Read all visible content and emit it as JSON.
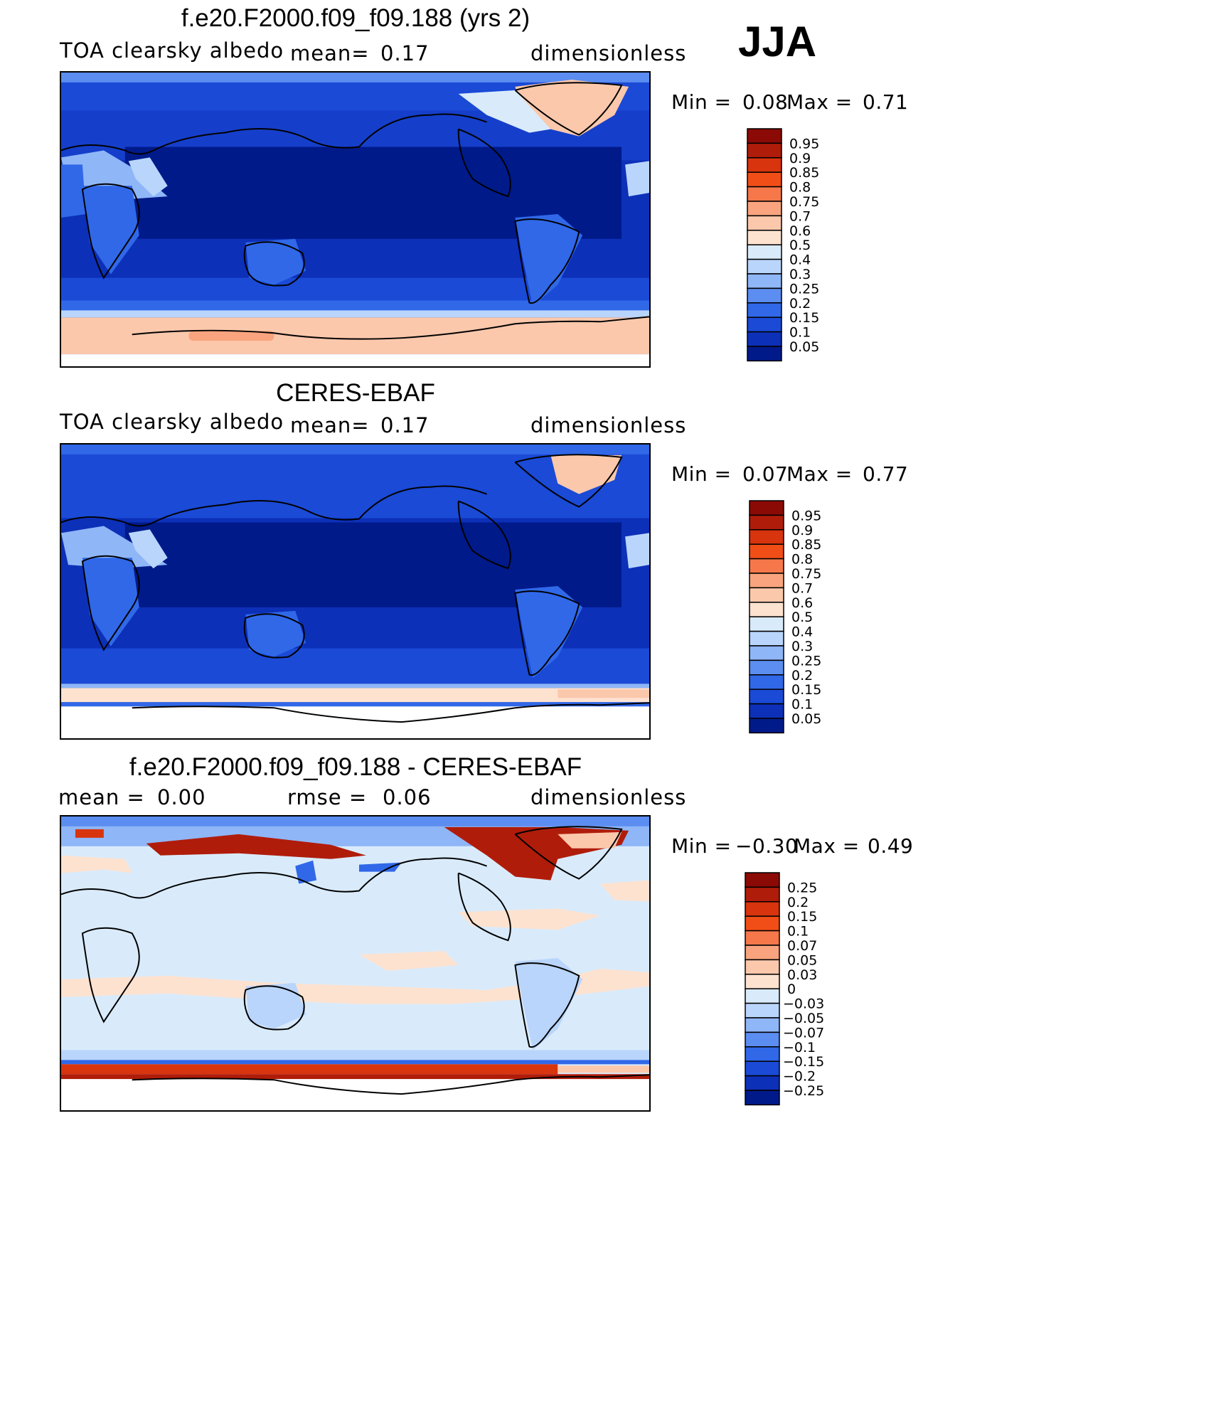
{
  "season": "JJA",
  "panels": [
    {
      "title": "f.e20.F2000.f09_f09.188 (yrs 2)",
      "left_label": "TOA clearsky albedo",
      "center_key": "mean=",
      "center_value": "0.17",
      "right_label": "dimensionless",
      "min_label": "Min =",
      "min_value": "0.08",
      "max_label": "Max =",
      "max_value": "0.71"
    },
    {
      "title": "CERES-EBAF",
      "left_label": "TOA clearsky albedo",
      "center_key": "mean=",
      "center_value": "0.17",
      "right_label": "dimensionless",
      "min_label": "Min =",
      "min_value": "0.07",
      "max_label": "Max =",
      "max_value": "0.77"
    },
    {
      "title": "f.e20.F2000.f09_f09.188 - CERES-EBAF",
      "left_key": "mean =",
      "left_value": "0.00",
      "center_key": "rmse =",
      "center_value": "0.06",
      "right_label": "dimensionless",
      "min_label": "Min =",
      "min_value": "−0.30",
      "max_label": "Max =",
      "max_value": "0.49"
    }
  ],
  "colorbars": {
    "abs": {
      "labels": [
        "0.95",
        "0.9",
        "0.85",
        "0.8",
        "0.75",
        "0.7",
        "0.6",
        "0.5",
        "0.4",
        "0.3",
        "0.25",
        "0.2",
        "0.15",
        "0.1",
        "0.05"
      ],
      "colors": [
        "#8c0a06",
        "#b01c0a",
        "#d8340e",
        "#f04e16",
        "#f6784a",
        "#f9a47e",
        "#fbc8ac",
        "#fde2d0",
        "#d9ebfb",
        "#b9d5fb",
        "#8fb6f7",
        "#5c8df0",
        "#3068e8",
        "#1a4ad6",
        "#0d30b8",
        "#001a8a"
      ]
    },
    "diff": {
      "labels": [
        "0.25",
        "0.2",
        "0.15",
        "0.1",
        "0.07",
        "0.05",
        "0.03",
        "0",
        "−0.03",
        "−0.05",
        "−0.07",
        "−0.1",
        "−0.15",
        "−0.2",
        "−0.25"
      ],
      "colors": [
        "#8c0a06",
        "#b01c0a",
        "#d8340e",
        "#f04e16",
        "#f6784a",
        "#f9a47e",
        "#fbc8ac",
        "#fde2d0",
        "#d9ebfb",
        "#b9d5fb",
        "#8fb6f7",
        "#5c8df0",
        "#3068e8",
        "#1a4ad6",
        "#0d30b8",
        "#001a8a"
      ]
    }
  },
  "chart_data": [
    {
      "type": "heatmap",
      "title": "f.e20.F2000.f09_f09.188 (yrs 2)",
      "variable": "TOA clearsky albedo",
      "units": "dimensionless",
      "season": "JJA",
      "mean": 0.17,
      "min": 0.08,
      "max": 0.71,
      "levels": [
        0.05,
        0.1,
        0.15,
        0.2,
        0.25,
        0.3,
        0.4,
        0.5,
        0.6,
        0.7,
        0.75,
        0.8,
        0.85,
        0.9,
        0.95
      ],
      "features": {
        "ocean_tropics": 0.08,
        "ocean_midlat": 0.12,
        "southern_ocean": 0.2,
        "antarctic_band": 0.6,
        "greenland": 0.6,
        "sahara_arabia": 0.3,
        "arctic_sea_ice": 0.5
      }
    },
    {
      "type": "heatmap",
      "title": "CERES-EBAF",
      "variable": "TOA clearsky albedo",
      "units": "dimensionless",
      "season": "JJA",
      "mean": 0.17,
      "min": 0.07,
      "max": 0.77,
      "levels": [
        0.05,
        0.1,
        0.15,
        0.2,
        0.25,
        0.3,
        0.4,
        0.5,
        0.6,
        0.7,
        0.75,
        0.8,
        0.85,
        0.9,
        0.95
      ],
      "features": {
        "ocean_tropics": 0.08,
        "ocean_midlat": 0.12,
        "southern_ocean": 0.17,
        "antarctic_band": 0.6,
        "antarctica": "missing",
        "greenland": 0.6,
        "sahara_arabia": 0.3
      }
    },
    {
      "type": "heatmap",
      "title": "f.e20.F2000.f09_f09.188 - CERES-EBAF",
      "units": "dimensionless",
      "season": "JJA",
      "mean": 0.0,
      "rmse": 0.06,
      "min": -0.3,
      "max": 0.49,
      "levels": [
        -0.25,
        -0.2,
        -0.15,
        -0.1,
        -0.07,
        -0.05,
        -0.03,
        0,
        0.03,
        0.05,
        0.07,
        0.1,
        0.15,
        0.2,
        0.25
      ],
      "features": {
        "siberia_arctic_coast": 0.15,
        "canadian_archipelago": 0.25,
        "okhotsk": -0.15,
        "tropical_ocean": -0.03,
        "subtropical_bands": 0.03,
        "antarctic_edge": 0.25,
        "southern_ocean": -0.05
      }
    }
  ]
}
